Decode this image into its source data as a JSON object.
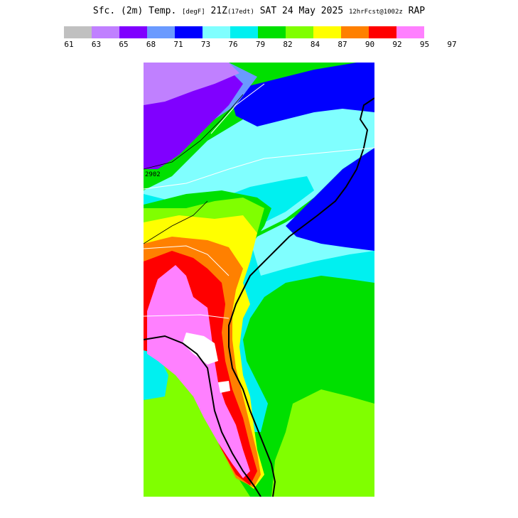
{
  "header": {
    "title_main": "Sfc. (2m) Temp.",
    "units": "[degF]",
    "valid_time": "21Z",
    "local_time": "(17edt)",
    "date": "SAT 24 May 2025",
    "forecast_info": "12hrFcst@1002z",
    "model": "RAP"
  },
  "legend": {
    "colors": [
      "#c0c0c0",
      "#c080ff",
      "#8000ff",
      "#6a9aff",
      "#0000ff",
      "#80ffff",
      "#00f0f0",
      "#00e000",
      "#80ff00",
      "#ffff00",
      "#ff8000",
      "#ff0000",
      "#ff80ff"
    ],
    "ticks": [
      "61",
      "63",
      "65",
      "68",
      "71",
      "73",
      "76",
      "79",
      "82",
      "84",
      "87",
      "90",
      "92",
      "95",
      "97"
    ]
  },
  "map": {
    "contour_label": "2902",
    "region": "Southeastern United States"
  }
}
